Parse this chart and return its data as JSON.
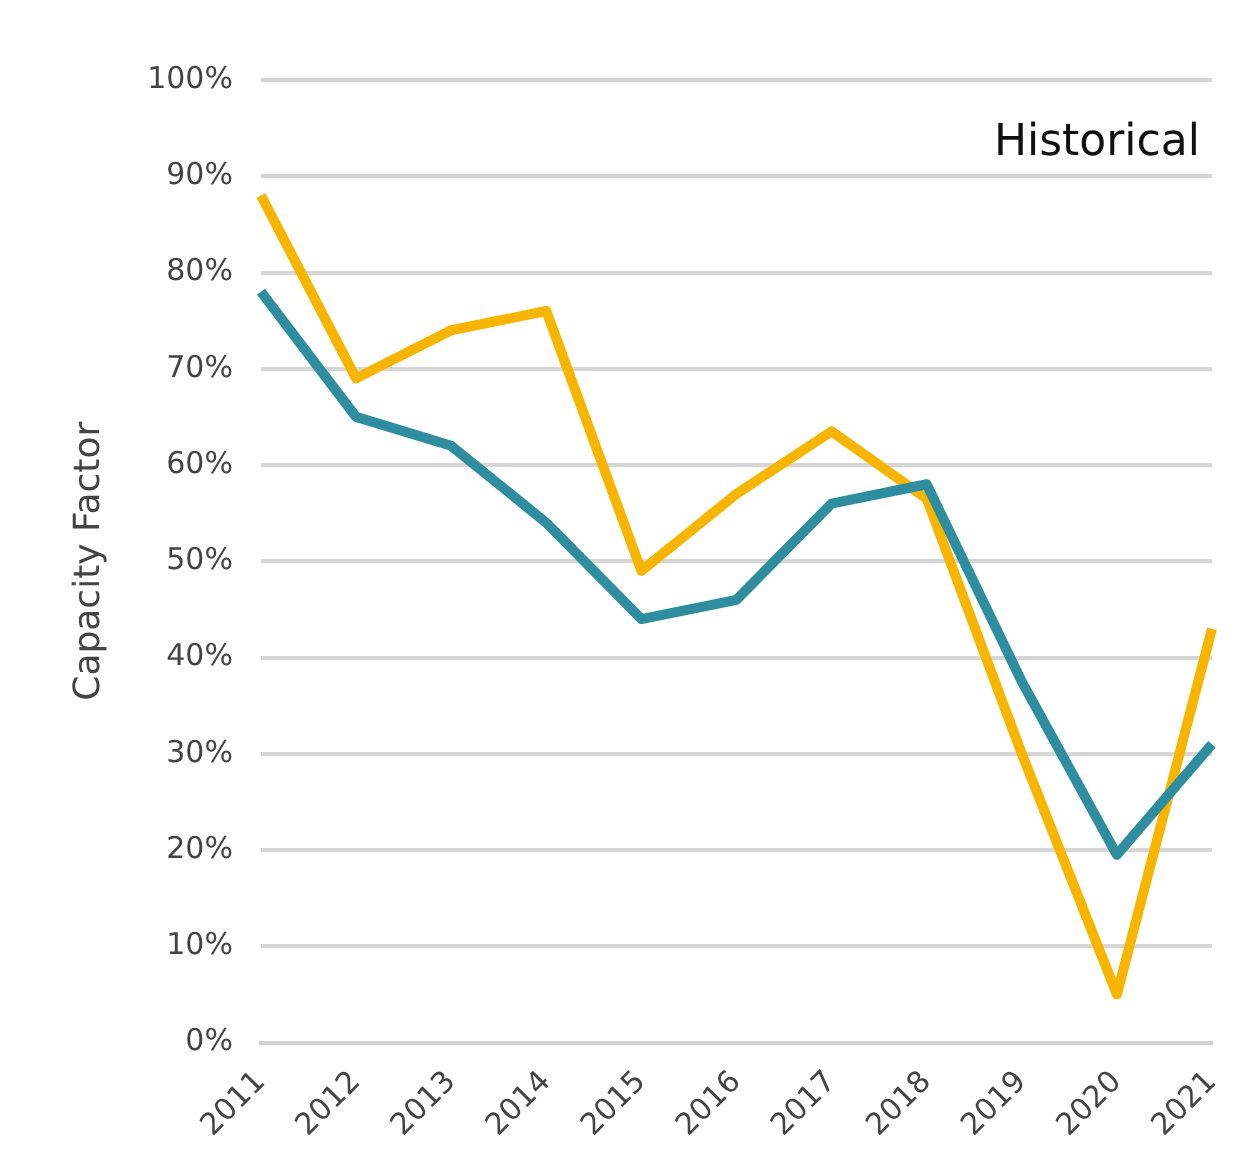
{
  "chart_data": {
    "type": "line",
    "ylabel": "Capacity Factor",
    "annotations": [
      "Historical"
    ],
    "categories": [
      "2011",
      "2012",
      "2013",
      "2014",
      "2015",
      "2016",
      "2017",
      "2018",
      "2019",
      "2020",
      "2021"
    ],
    "series": [
      {
        "color": "#2e8ea0",
        "values": [
          78,
          65,
          62,
          54,
          44,
          46,
          56,
          58,
          37.5,
          19.5,
          31
        ]
      },
      {
        "color": "#f7b500",
        "values": [
          88,
          69,
          74,
          76,
          49,
          57,
          63.5,
          56.5,
          30,
          5,
          43
        ]
      }
    ],
    "ylim": [
      0,
      100
    ],
    "yticks": [
      {
        "value": 0,
        "label": "0%"
      },
      {
        "value": 10,
        "label": "10%"
      },
      {
        "value": 20,
        "label": "20%"
      },
      {
        "value": 30,
        "label": "30%"
      },
      {
        "value": 40,
        "label": "40%"
      },
      {
        "value": 50,
        "label": "50%"
      },
      {
        "value": 60,
        "label": "60%"
      },
      {
        "value": 70,
        "label": "70%"
      },
      {
        "value": 80,
        "label": "80%"
      },
      {
        "value": 90,
        "label": "90%"
      },
      {
        "value": 100,
        "label": "100%"
      }
    ],
    "grid": "y",
    "legend": false,
    "marker": "none",
    "line_style": "solid"
  }
}
